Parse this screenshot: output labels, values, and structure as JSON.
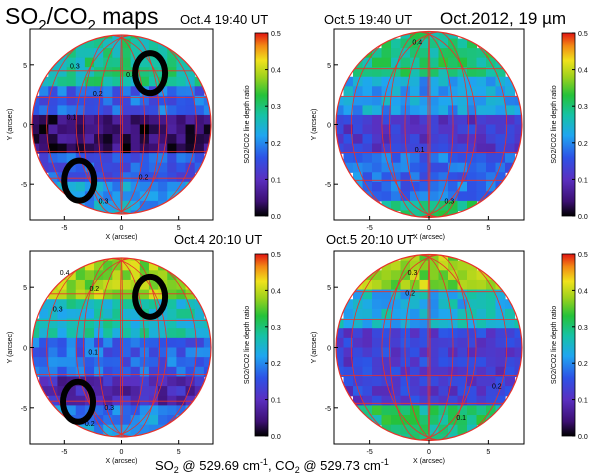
{
  "figure": {
    "title_main": "SO",
    "title_sub": "2",
    "title_mid": "/CO",
    "title_sub2": "2",
    "title_tail": " maps",
    "campaign": "Oct.2012, 19 µm",
    "footer": {
      "p1": "SO",
      "s1": "2",
      "p2": " @ 529.69 cm",
      "e1": "-1",
      "p3": ", CO",
      "s2": "2",
      "p4": " @ 529.73 cm",
      "e2": "-1"
    }
  },
  "chart_data": [
    {
      "type": "heatmap",
      "panel": "top-left",
      "title": "Oct.4 19:40 UT",
      "xlabel": "X (arcsec)",
      "ylabel": "Y (arcsec)",
      "xticks": [
        "-5",
        "0",
        "5"
      ],
      "yticks": [
        "5",
        "0",
        "-5"
      ],
      "xlim": [
        -8,
        8
      ],
      "ylim": [
        -8,
        8
      ],
      "colorbar": {
        "label": "SO2/CO2 line depth ratio",
        "range": [
          0.0,
          0.5
        ],
        "ticks": [
          "0.5",
          "0.4",
          "0.3",
          "0.2",
          "0.1",
          "0.0"
        ]
      },
      "contour_labels": [
        "0.3",
        "0.4",
        "0.2",
        "0.1",
        "0.2",
        "0.3"
      ],
      "regions": [
        {
          "ymin": 3,
          "ymax": 8,
          "value": 0.28
        },
        {
          "ymin": 1,
          "ymax": 3,
          "value": 0.17
        },
        {
          "ymin": -2,
          "ymax": 1,
          "value": 0.04
        },
        {
          "ymin": -5,
          "ymax": -2,
          "value": 0.16
        },
        {
          "ymin": -8,
          "ymax": -5,
          "value": 0.22
        }
      ],
      "highlight_circles": [
        {
          "x": 2.5,
          "y": 4.3
        },
        {
          "x": -3.7,
          "y": -4.7
        }
      ]
    },
    {
      "type": "heatmap",
      "panel": "top-right",
      "title": "Oct.5 19:40 UT",
      "xlabel": "X (arcsec)",
      "ylabel": "Y (arcsec)",
      "xticks": [
        "-5",
        "0",
        "5"
      ],
      "yticks": [
        "5",
        "0",
        "-5"
      ],
      "xlim": [
        -8,
        8
      ],
      "ylim": [
        -8,
        8
      ],
      "colorbar": {
        "label": "SO2/CO2 line depth ratio",
        "range": [
          0.0,
          0.5
        ],
        "ticks": [
          "0.5",
          "0.4",
          "0.3",
          "0.2",
          "0.1",
          "0.0"
        ]
      },
      "contour_labels": [
        "0.4",
        "0.1",
        "0.3"
      ],
      "regions": [
        {
          "ymin": 4,
          "ymax": 8,
          "value": 0.3
        },
        {
          "ymin": 1,
          "ymax": 4,
          "value": 0.22
        },
        {
          "ymin": -2,
          "ymax": 1,
          "value": 0.12
        },
        {
          "ymin": -6,
          "ymax": -2,
          "value": 0.18
        },
        {
          "ymin": -8,
          "ymax": -6,
          "value": 0.3
        }
      ],
      "highlight_circles": []
    },
    {
      "type": "heatmap",
      "panel": "bottom-left",
      "title": "Oct.4 20:10 UT",
      "xlabel": "X (arcsec)",
      "ylabel": "Y (arcsec)",
      "xticks": [
        "-5",
        "0",
        "5"
      ],
      "yticks": [
        "5",
        "0",
        "-5"
      ],
      "xlim": [
        -8,
        8
      ],
      "ylim": [
        -8,
        8
      ],
      "colorbar": {
        "label": "SO2/CO2 line depth ratio",
        "range": [
          0.0,
          0.5
        ],
        "ticks": [
          "0.5",
          "0.4",
          "0.3",
          "0.2",
          "0.1",
          "0.0"
        ]
      },
      "contour_labels": [
        "0.4",
        "0.2",
        "0.3",
        "0.1",
        "0.3",
        "0.2"
      ],
      "regions": [
        {
          "ymin": 4,
          "ymax": 8,
          "value": 0.38
        },
        {
          "ymin": 1,
          "ymax": 4,
          "value": 0.26
        },
        {
          "ymin": -2,
          "ymax": 1,
          "value": 0.17
        },
        {
          "ymin": -5,
          "ymax": -2,
          "value": 0.09
        },
        {
          "ymin": -8,
          "ymax": -5,
          "value": 0.2
        }
      ],
      "highlight_circles": [
        {
          "x": 2.5,
          "y": 4.2
        },
        {
          "x": -3.8,
          "y": -4.5
        }
      ]
    },
    {
      "type": "heatmap",
      "panel": "bottom-right",
      "title": "Oct.5 20:10 UT",
      "xlabel": "X (arcsec)",
      "ylabel": "Y (arcsec)",
      "xticks": [
        "-5",
        "0",
        "5"
      ],
      "yticks": [
        "5",
        "0",
        "-5"
      ],
      "xlim": [
        -8,
        8
      ],
      "ylim": [
        -8,
        8
      ],
      "colorbar": {
        "label": "SO2/CO2 line depth ratio",
        "range": [
          0.0,
          0.5
        ],
        "ticks": [
          "0.5",
          "0.4",
          "0.3",
          "0.2",
          "0.1",
          "0.0"
        ]
      },
      "contour_labels": [
        "0.3",
        "0.2",
        "0.2",
        "0.1"
      ],
      "regions": [
        {
          "ymin": 5,
          "ymax": 8,
          "value": 0.38
        },
        {
          "ymin": 2,
          "ymax": 5,
          "value": 0.24
        },
        {
          "ymin": -5,
          "ymax": 2,
          "value": 0.13
        },
        {
          "ymin": -8,
          "ymax": -5,
          "value": 0.3
        }
      ],
      "highlight_circles": []
    }
  ]
}
